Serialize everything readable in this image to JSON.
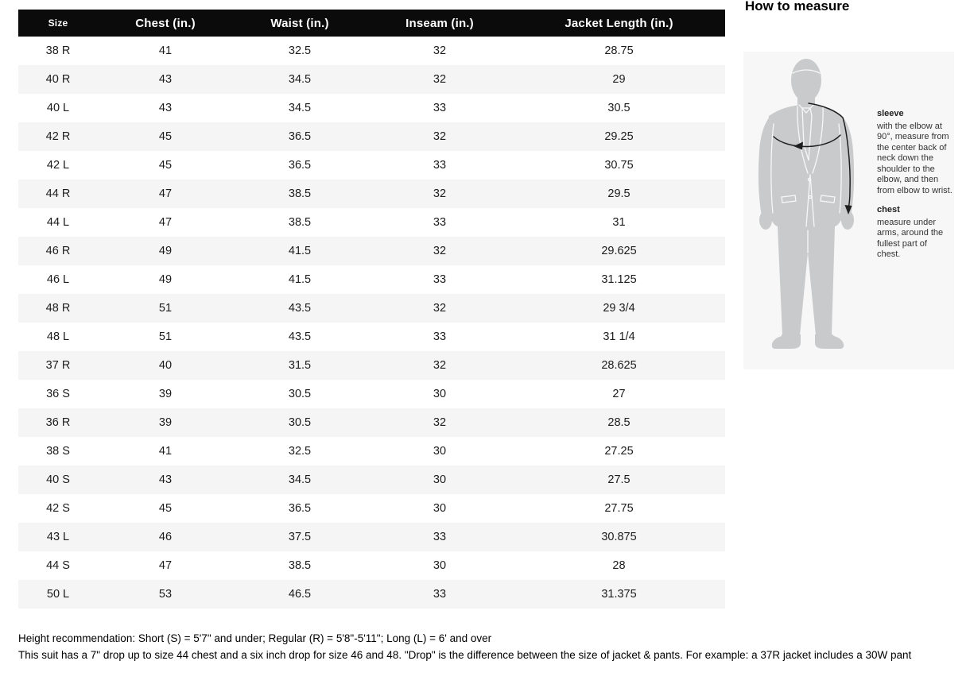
{
  "table": {
    "columns": [
      "Size",
      "Chest (in.)",
      "Waist (in.)",
      "Inseam (in.)",
      "Jacket Length (in.)"
    ],
    "rows": [
      [
        "38 R",
        "41",
        "32.5",
        "32",
        "28.75"
      ],
      [
        "40 R",
        "43",
        "34.5",
        "32",
        "29"
      ],
      [
        "40 L",
        "43",
        "34.5",
        "33",
        "30.5"
      ],
      [
        "42 R",
        "45",
        "36.5",
        "32",
        "29.25"
      ],
      [
        "42 L",
        "45",
        "36.5",
        "33",
        "30.75"
      ],
      [
        "44 R",
        "47",
        "38.5",
        "32",
        "29.5"
      ],
      [
        "44 L",
        "47",
        "38.5",
        "33",
        "31"
      ],
      [
        "46 R",
        "49",
        "41.5",
        "32",
        "29.625"
      ],
      [
        "46 L",
        "49",
        "41.5",
        "33",
        "31.125"
      ],
      [
        "48 R",
        "51",
        "43.5",
        "32",
        "29 3/4"
      ],
      [
        "48 L",
        "51",
        "43.5",
        "33",
        "31 1/4"
      ],
      [
        "37 R",
        "40",
        "31.5",
        "32",
        "28.625"
      ],
      [
        "36 S",
        "39",
        "30.5",
        "30",
        "27"
      ],
      [
        "36 R",
        "39",
        "30.5",
        "32",
        "28.5"
      ],
      [
        "38 S",
        "41",
        "32.5",
        "30",
        "27.25"
      ],
      [
        "40 S",
        "43",
        "34.5",
        "30",
        "27.5"
      ],
      [
        "42 S",
        "45",
        "36.5",
        "30",
        "27.75"
      ],
      [
        "43 L",
        "46",
        "37.5",
        "33",
        "30.875"
      ],
      [
        "44 S",
        "47",
        "38.5",
        "30",
        "28"
      ],
      [
        "50 L",
        "53",
        "46.5",
        "33",
        "31.375"
      ]
    ]
  },
  "how_to_measure": {
    "title": "How to measure",
    "sections": [
      {
        "label": "sleeve",
        "text": "with the elbow at 90°, measure from the center back of neck down the shoulder to the elbow, and then from elbow to wrist."
      },
      {
        "label": "chest",
        "text": "measure under arms, around the fullest part of chest."
      }
    ]
  },
  "footnotes": [
    "Height recommendation: Short (S) = 5'7\" and under; Regular (R) = 5'8\"-5'11\"; Long (L) = 6' and over",
    "This suit has a 7\" drop up to size 44 chest and a six inch drop for size 46 and 48. \"Drop\" is the difference between the size of jacket & pants. For example: a 37R jacket includes a 30W pant"
  ],
  "colors": {
    "header_bg": "#0b0b0b",
    "header_text": "#ffffff",
    "row_alt_bg": "#f5f5f5",
    "panel_bg": "#f7f7f7",
    "silhouette": "#c9cacb",
    "arrow": "#1f1f1f"
  }
}
